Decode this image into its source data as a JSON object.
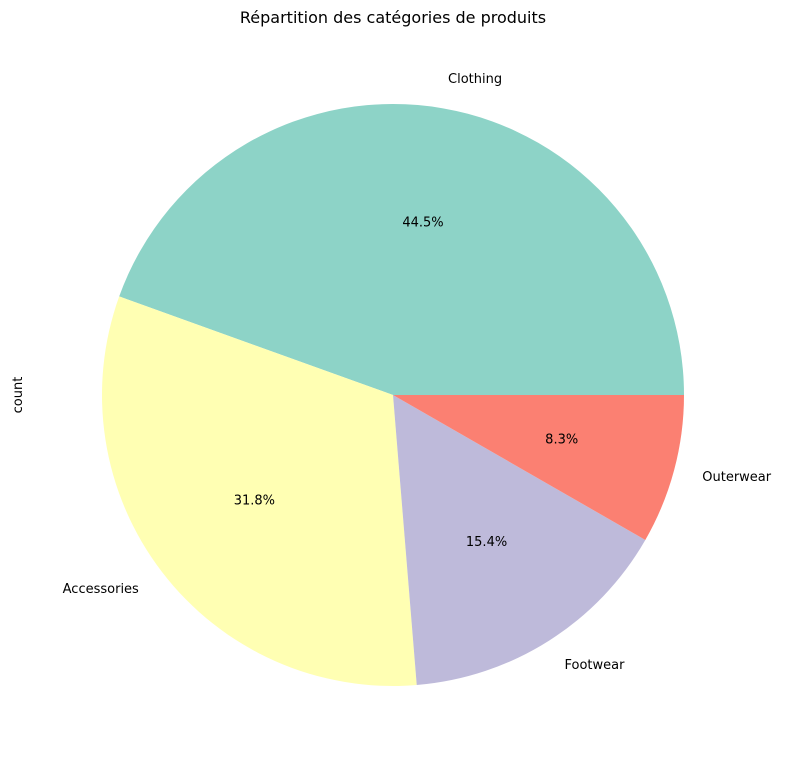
{
  "chart_data": {
    "type": "pie",
    "title": "Répartition des catégories de produits",
    "ylabel": "count",
    "start_angle_deg": 0,
    "direction": "counterclockwise",
    "slices": [
      {
        "label": "Clothing",
        "value": 44.5,
        "pct_label": "44.5%",
        "color": "#8dd3c7"
      },
      {
        "label": "Accessories",
        "value": 31.8,
        "pct_label": "31.8%",
        "color": "#ffffb3"
      },
      {
        "label": "Footwear",
        "value": 15.4,
        "pct_label": "15.4%",
        "color": "#bebada"
      },
      {
        "label": "Outerwear",
        "value": 8.3,
        "pct_label": "8.3%",
        "color": "#fb8072"
      }
    ]
  }
}
